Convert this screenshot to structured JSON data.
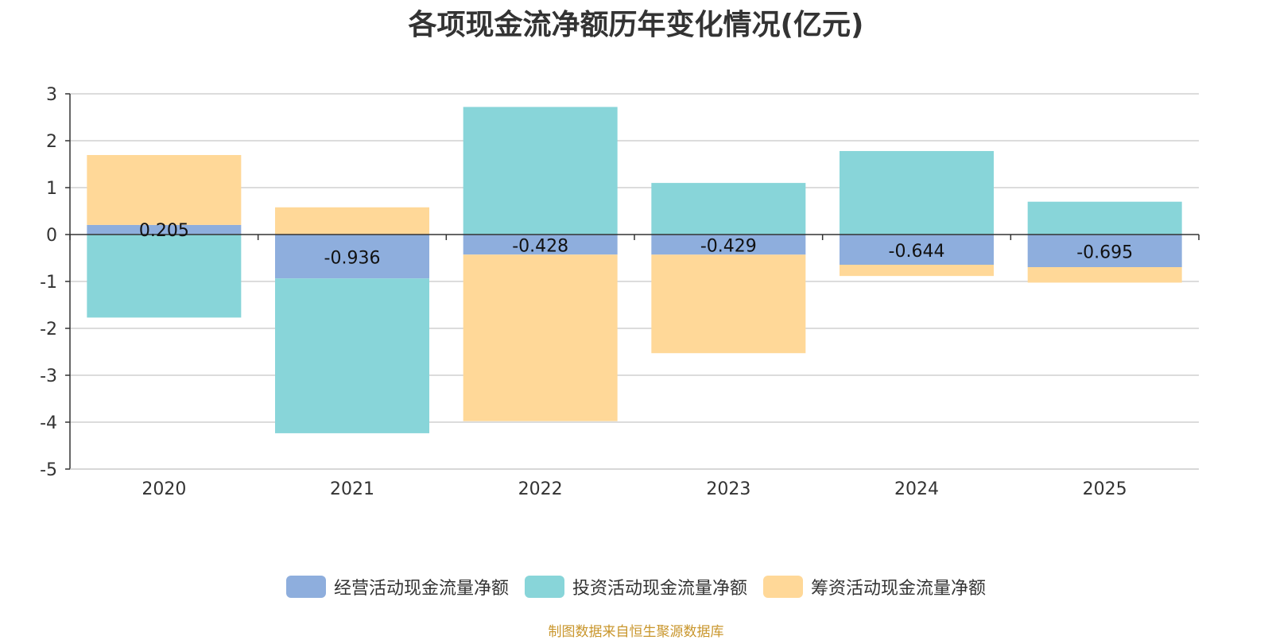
{
  "title": "各项现金流净额历年变化情况(亿元)",
  "source": "制图数据来自恒生聚源数据库",
  "colors": {
    "operating": "#8eaedd",
    "investing": "#88d5d9",
    "financing": "#ffd898",
    "grid": "#c8c8c8",
    "axis": "#333333",
    "source": "#c9962c"
  },
  "chart_data": {
    "type": "bar",
    "stacked": true,
    "categories": [
      "2020",
      "2021",
      "2022",
      "2023",
      "2024",
      "2025"
    ],
    "ylim": [
      -5,
      3
    ],
    "yticks": [
      3,
      2,
      1,
      0,
      -1,
      -2,
      -3,
      -4,
      -5
    ],
    "series": [
      {
        "key": "operating",
        "name": "经营活动现金流量净额",
        "values": [
          0.205,
          -0.936,
          -0.428,
          -0.429,
          -0.644,
          -0.695
        ],
        "labels": [
          "0.205",
          "-0.936",
          "-0.428",
          "-0.429",
          "-0.644",
          "-0.695"
        ]
      },
      {
        "key": "investing",
        "name": "投资活动现金流量净额",
        "values": [
          -1.77,
          -3.3,
          2.72,
          1.1,
          1.78,
          0.7
        ]
      },
      {
        "key": "financing",
        "name": "筹资活动现金流量净额",
        "values": [
          1.49,
          0.58,
          -3.55,
          -2.1,
          -0.24,
          -0.33
        ]
      }
    ],
    "legend_position": "bottom"
  }
}
